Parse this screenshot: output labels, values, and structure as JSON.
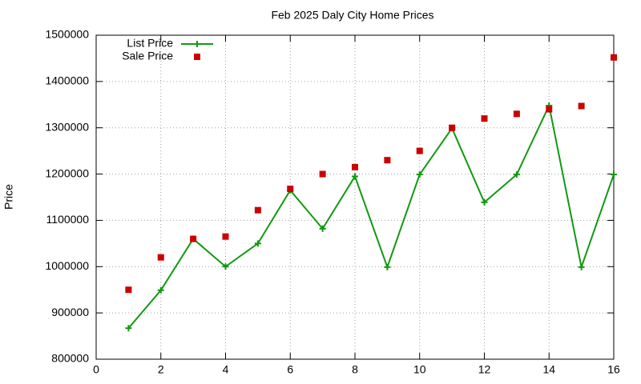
{
  "chart_data": {
    "type": "line",
    "title": "Feb 2025 Daly City Home Prices",
    "ylabel": "Price",
    "x": [
      1,
      2,
      3,
      4,
      5,
      6,
      7,
      8,
      9,
      10,
      11,
      12,
      13,
      14,
      15,
      16
    ],
    "series": [
      {
        "name": "List Price",
        "color": "#119911",
        "mode": "lines+markers",
        "values": [
          867000,
          949000,
          1060000,
          1000000,
          1050000,
          1165000,
          1082000,
          1195000,
          999000,
          1199000,
          1299000,
          1139000,
          1199000,
          1348000,
          999000,
          1199000
        ]
      },
      {
        "name": "Sale Price",
        "color": "#cc0000",
        "mode": "markers",
        "values": [
          950000,
          1020000,
          1060000,
          1065000,
          1122000,
          1168000,
          1200000,
          1215000,
          1230000,
          1250000,
          1300000,
          1320000,
          1330000,
          1340000,
          1347000,
          1452000
        ]
      }
    ],
    "xlim": [
      0,
      16
    ],
    "xticks": [
      0,
      2,
      4,
      6,
      8,
      10,
      12,
      14,
      16
    ],
    "ylim": [
      800000,
      1500000
    ],
    "yticks": [
      800000,
      900000,
      1000000,
      1100000,
      1200000,
      1300000,
      1400000,
      1500000
    ],
    "grid": true,
    "legend": "top-left"
  }
}
